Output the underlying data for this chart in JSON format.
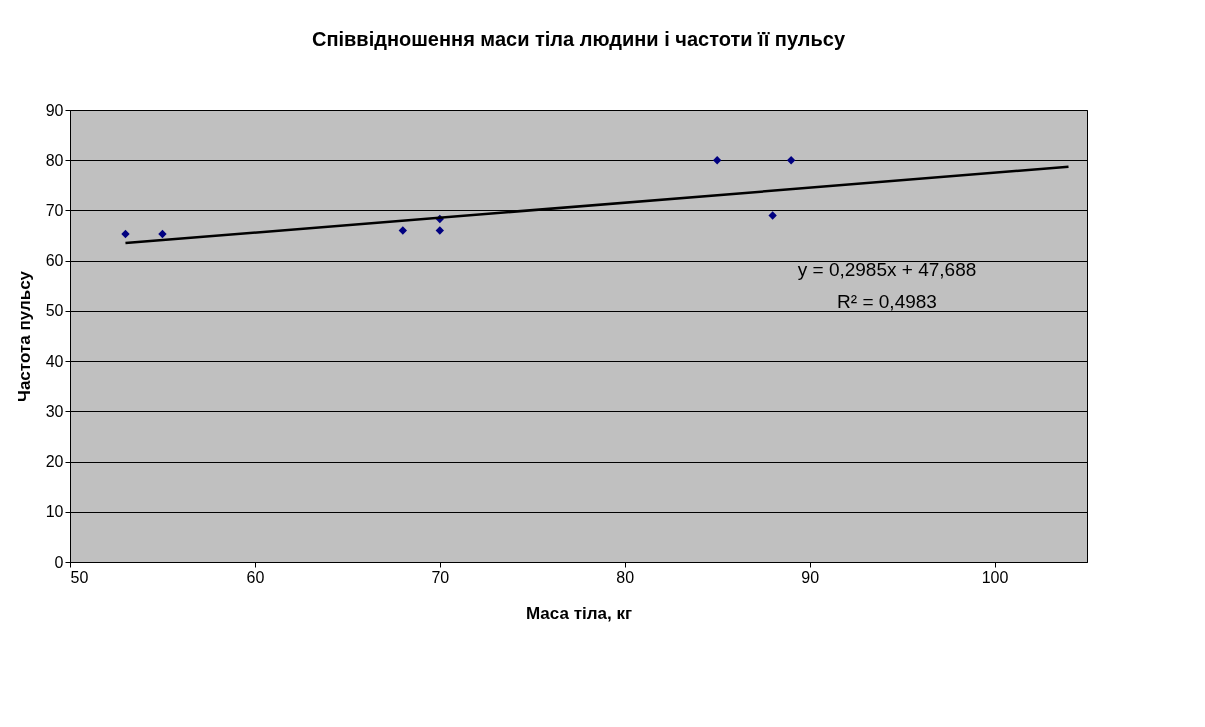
{
  "chart_data": {
    "type": "scatter",
    "title": "Співвідношення маси тіла людини і частоти її пульсу",
    "xlabel": "Маса тіла, кг",
    "ylabel": "Частота пульсу",
    "x": [
      53,
      55,
      68,
      70,
      70,
      85,
      88,
      89
    ],
    "series": [
      {
        "color": "#000080",
        "marker": "diamond",
        "values": [
          65.3,
          65.3,
          66,
          66,
          68.3,
          80,
          69,
          80
        ]
      },
      {
        "type": "line",
        "color": "#000000",
        "x": [
          53,
          104
        ],
        "values": [
          63.5,
          78.7
        ],
        "line_style": "solid",
        "marker": "none"
      }
    ],
    "xlim": [
      50,
      105
    ],
    "xticks": [
      50,
      60,
      70,
      80,
      90,
      100
    ],
    "ylim": [
      0,
      90
    ],
    "yticks": [
      0,
      10,
      20,
      30,
      40,
      50,
      60,
      70,
      80,
      90
    ],
    "grid": "y",
    "annotations": [
      "y = 0,2985x + 47,688",
      "R² = 0,4983"
    ]
  }
}
